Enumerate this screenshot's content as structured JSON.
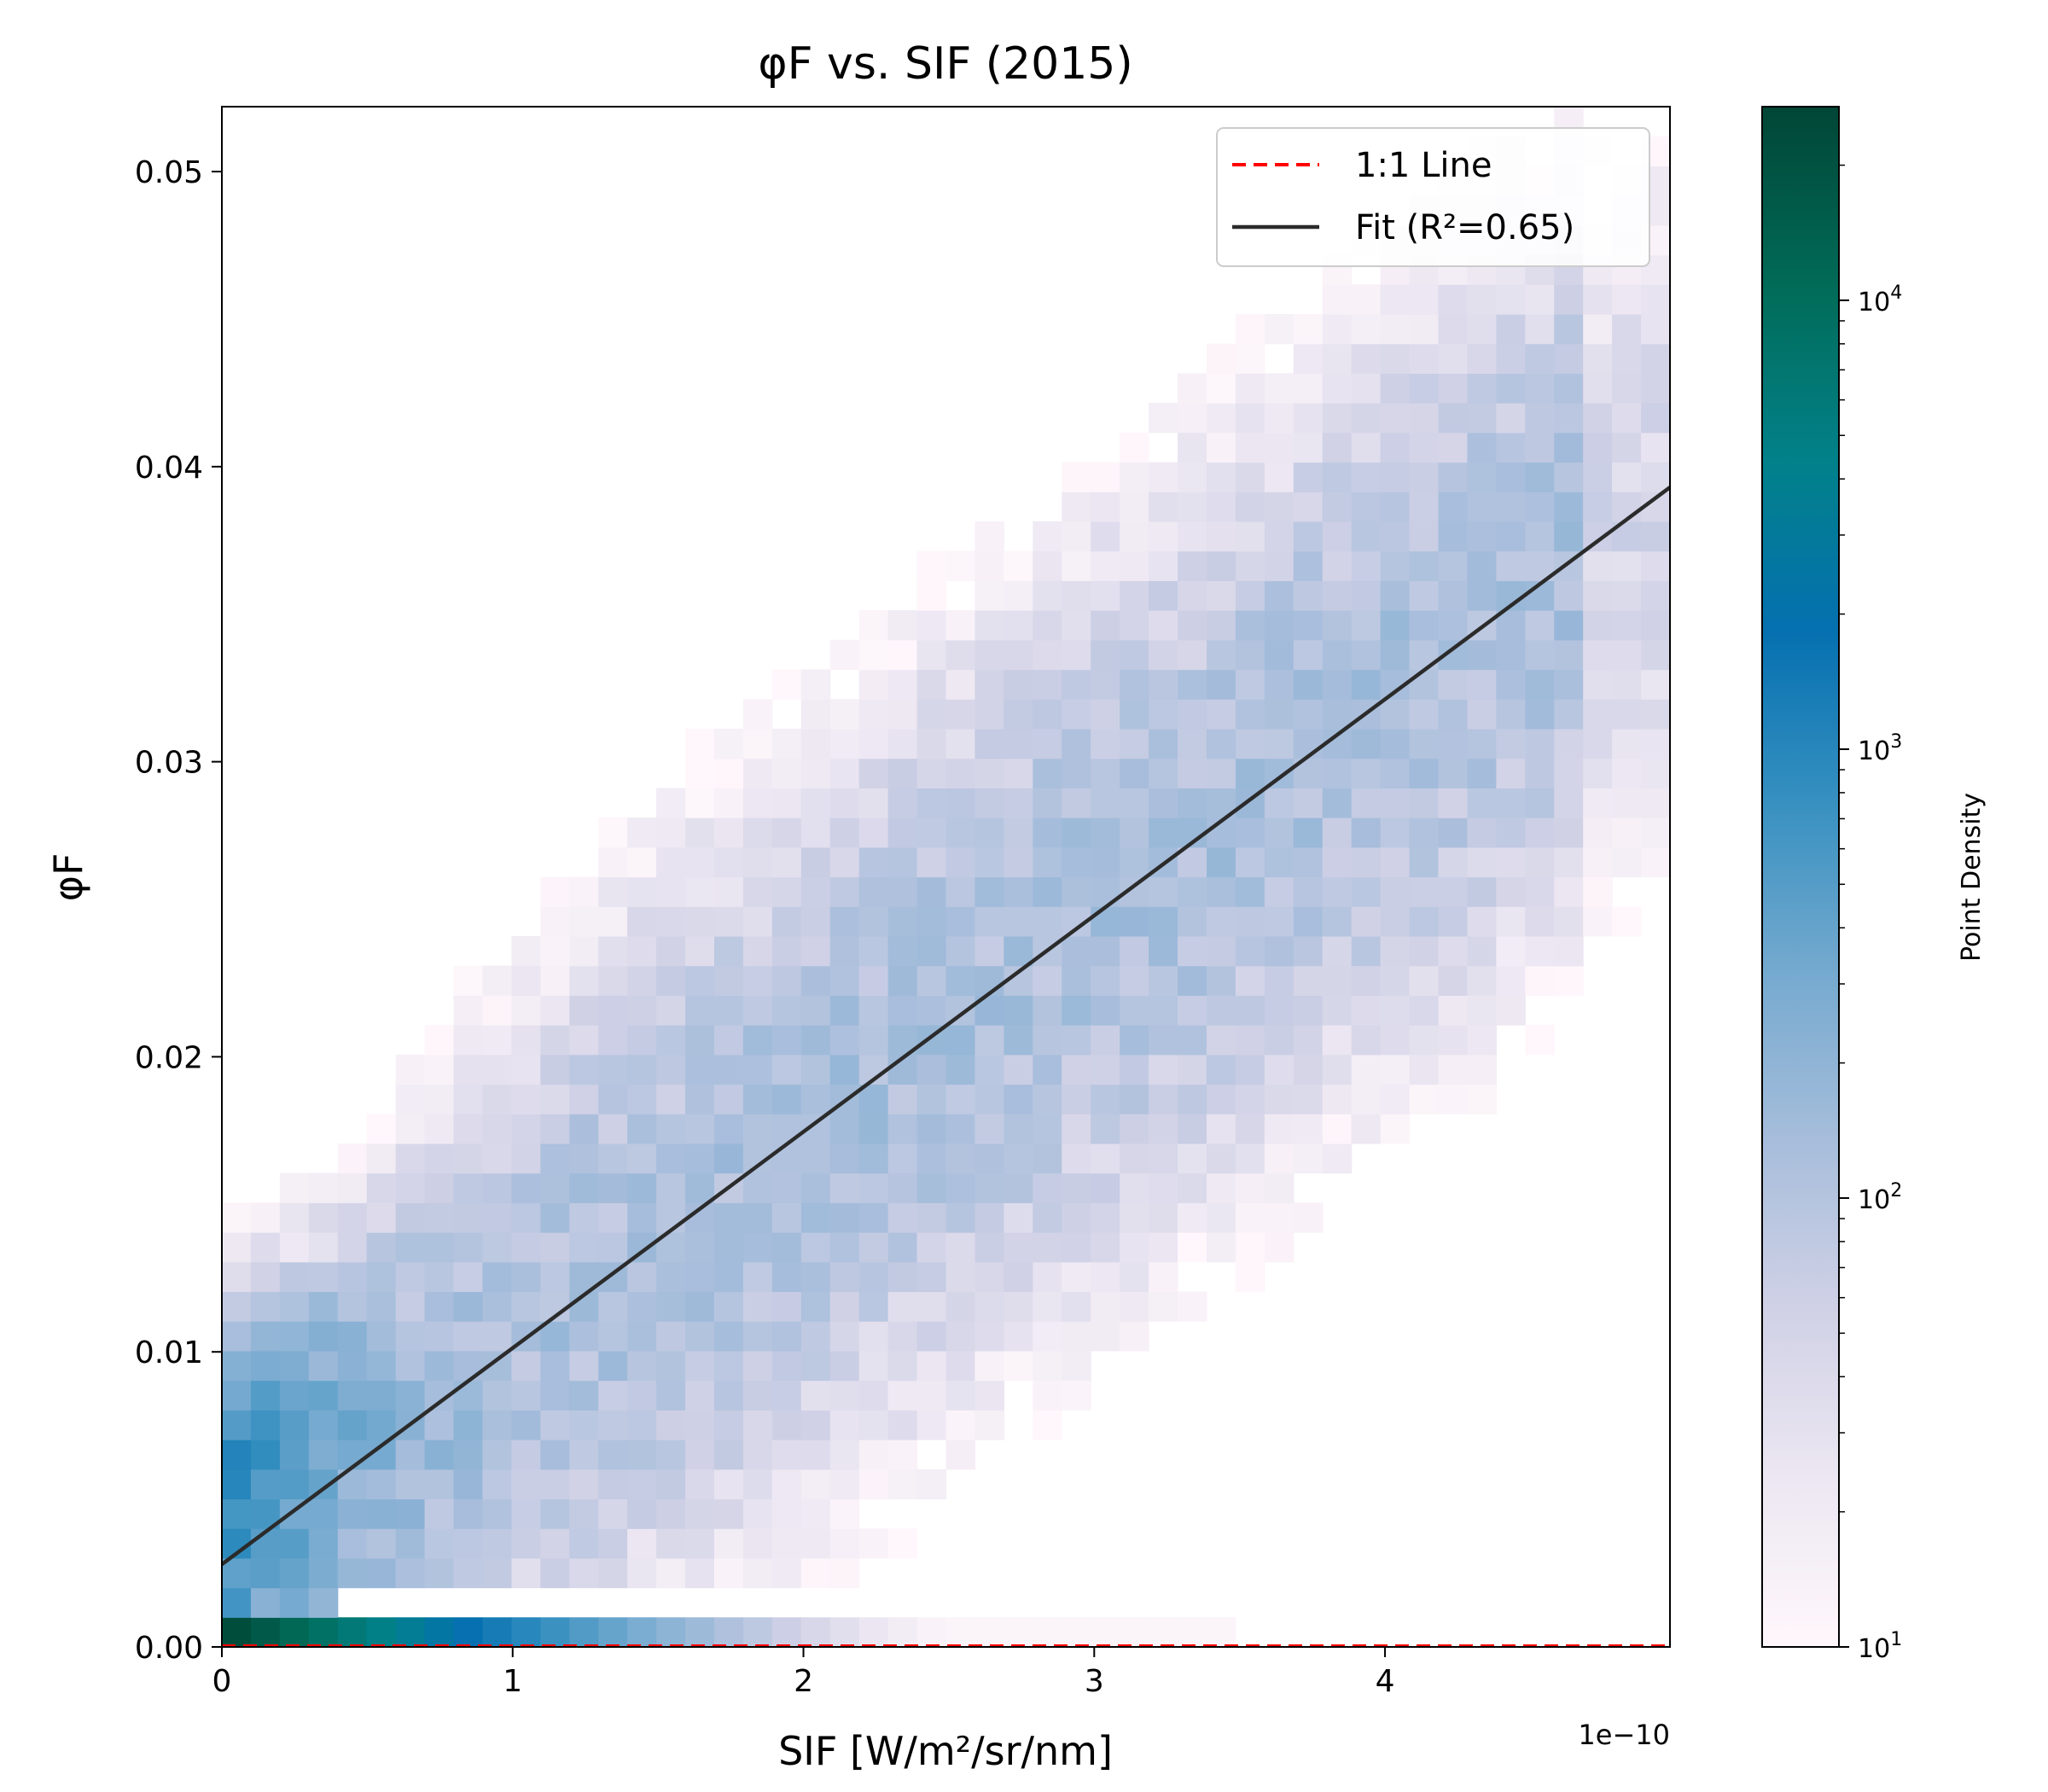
{
  "chart_data": {
    "type": "heatmap",
    "title": "φF vs. SIF (2015)",
    "xlabel": "SIF [W/m²/sr/nm]",
    "ylabel": "φF",
    "x_offset_label": "1e−10",
    "xlim": [
      0,
      4.98
    ],
    "ylim": [
      0,
      0.0522
    ],
    "xticks": [
      0,
      1,
      2,
      3,
      4
    ],
    "xtick_labels": [
      "0",
      "1",
      "2",
      "3",
      "4"
    ],
    "yticks": [
      0.0,
      0.01,
      0.02,
      0.03,
      0.04,
      0.05
    ],
    "ytick_labels": [
      "0.00",
      "0.01",
      "0.02",
      "0.03",
      "0.04",
      "0.05"
    ],
    "colorbar": {
      "label": "Point Density",
      "scale": "log",
      "range": [
        10,
        27000
      ],
      "ticks": [
        10,
        100,
        1000,
        10000
      ],
      "tick_labels": [
        "10",
        "10",
        "10",
        "10"
      ],
      "tick_exponents": [
        "1",
        "2",
        "3",
        "4"
      ],
      "colormap": [
        "#fff7fb",
        "#ece7f2",
        "#d0d1e6",
        "#a6bddb",
        "#74a9cf",
        "#3690c0",
        "#0570b0",
        "#02818a",
        "#016c59",
        "#014636"
      ]
    },
    "bins": {
      "x_count": 50,
      "y_count": 52,
      "x_range": [
        0,
        4.98
      ],
      "y_range": [
        0,
        0.0522
      ]
    },
    "series": [
      {
        "name": "1:1 Line",
        "type": "line",
        "style": "dashed",
        "color": "#ff0000",
        "x": [
          0,
          4.98
        ],
        "y": [
          0,
          0.0
        ]
      },
      {
        "name": "Fit (R²=0.65)",
        "type": "line",
        "style": "solid",
        "color": "#2b2b2b",
        "x": [
          0,
          4.98
        ],
        "y": [
          0.0028,
          0.0393
        ]
      }
    ],
    "legend": {
      "placement": "top-right",
      "entries": [
        "1:1 Line",
        "Fit (R²=0.65)"
      ]
    },
    "grid": false
  }
}
